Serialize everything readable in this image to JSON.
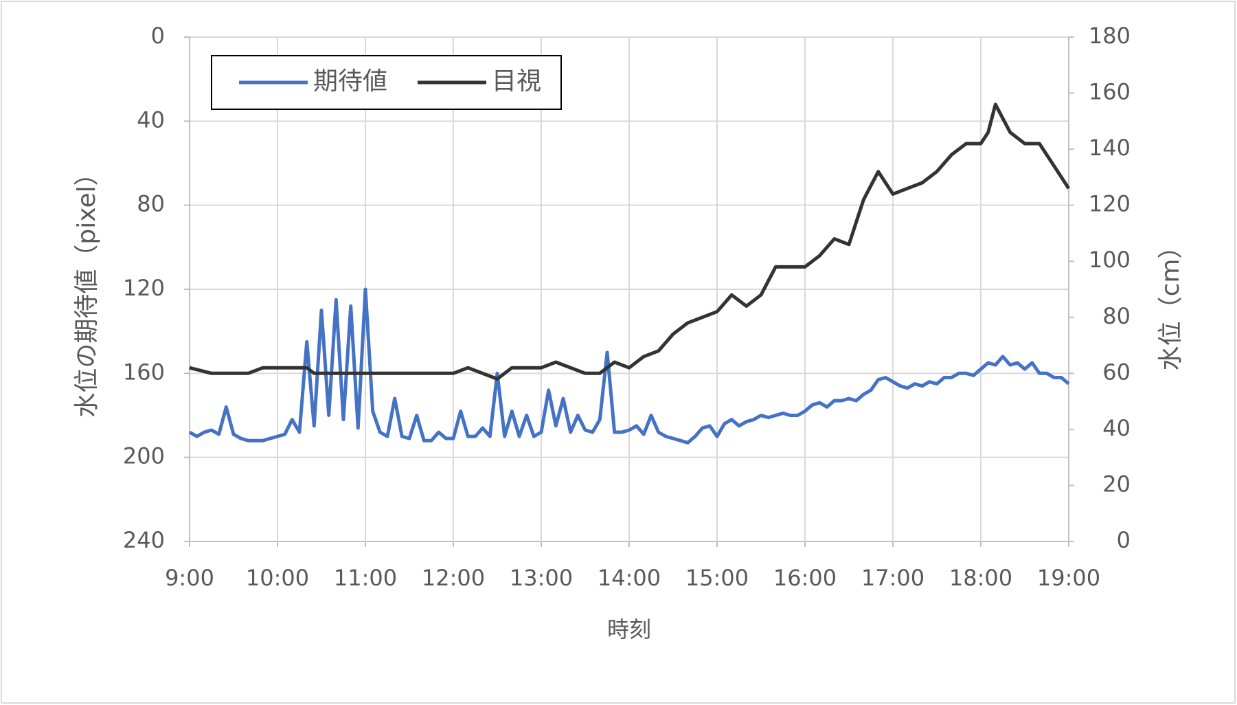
{
  "chart_data": {
    "type": "line",
    "x_label": "時刻",
    "y_label": "水位の期待値（pixel）",
    "y2_label": "水位（cm）",
    "xlim": [
      "9:00",
      "19:00"
    ],
    "xticks": [
      "9:00",
      "10:00",
      "11:00",
      "12:00",
      "13:00",
      "14:00",
      "15:00",
      "16:00",
      "17:00",
      "18:00",
      "19:00"
    ],
    "ylim": [
      0,
      240
    ],
    "y_inverted": true,
    "yticks": [
      0,
      40,
      80,
      120,
      160,
      200,
      240
    ],
    "y2lim": [
      0,
      180
    ],
    "y2ticks": [
      0,
      20,
      40,
      60,
      80,
      100,
      120,
      140,
      160,
      180
    ],
    "grid": true,
    "legend": "top-left",
    "series": [
      {
        "name": "期待値",
        "color": "#4472c4",
        "x": [
          "9:00",
          "9:05",
          "9:10",
          "9:15",
          "9:20",
          "9:25",
          "9:30",
          "9:35",
          "9:40",
          "9:45",
          "9:50",
          "9:55",
          "10:00",
          "10:05",
          "10:10",
          "10:15",
          "10:20",
          "10:25",
          "10:30",
          "10:35",
          "10:40",
          "10:45",
          "10:50",
          "10:55",
          "11:00",
          "11:05",
          "11:10",
          "11:15",
          "11:20",
          "11:25",
          "11:30",
          "11:35",
          "11:40",
          "11:45",
          "11:50",
          "11:55",
          "12:00",
          "12:05",
          "12:10",
          "12:15",
          "12:20",
          "12:25",
          "12:30",
          "12:35",
          "12:40",
          "12:45",
          "12:50",
          "12:55",
          "13:00",
          "13:05",
          "13:10",
          "13:15",
          "13:20",
          "13:25",
          "13:30",
          "13:35",
          "13:40",
          "13:45",
          "13:50",
          "13:55",
          "14:00",
          "14:05",
          "14:10",
          "14:15",
          "14:20",
          "14:25",
          "14:30",
          "14:35",
          "14:40",
          "14:45",
          "14:50",
          "14:55",
          "15:00",
          "15:05",
          "15:10",
          "15:15",
          "15:20",
          "15:25",
          "15:30",
          "15:35",
          "15:40",
          "15:45",
          "15:50",
          "15:55",
          "16:00",
          "16:05",
          "16:10",
          "16:15",
          "16:20",
          "16:25",
          "16:30",
          "16:35",
          "16:40",
          "16:45",
          "16:50",
          "16:55",
          "17:00",
          "17:05",
          "17:10",
          "17:15",
          "17:20",
          "17:25",
          "17:30",
          "17:35",
          "17:40",
          "17:45",
          "17:50",
          "17:55",
          "18:00",
          "18:05",
          "18:10",
          "18:15",
          "18:20",
          "18:25",
          "18:30",
          "18:35",
          "18:40",
          "18:45",
          "18:50",
          "18:55",
          "19:00"
        ],
        "values": [
          188,
          190,
          188,
          187,
          189,
          176,
          189,
          191,
          192,
          192,
          192,
          191,
          190,
          189,
          182,
          188,
          145,
          185,
          130,
          180,
          125,
          182,
          128,
          186,
          120,
          178,
          188,
          190,
          172,
          190,
          191,
          180,
          192,
          192,
          188,
          191,
          191,
          178,
          190,
          190,
          186,
          190,
          160,
          190,
          178,
          190,
          180,
          190,
          188,
          168,
          185,
          172,
          188,
          180,
          187,
          188,
          182,
          150,
          188,
          188,
          187,
          185,
          189,
          180,
          188,
          190,
          191,
          192,
          193,
          190,
          186,
          185,
          190,
          184,
          182,
          185,
          183,
          182,
          180,
          181,
          180,
          179,
          180,
          180,
          178,
          175,
          174,
          176,
          173,
          173,
          172,
          173,
          170,
          168,
          163,
          162,
          164,
          166,
          167,
          165,
          166,
          164,
          165,
          162,
          162,
          160,
          160,
          161,
          158,
          155,
          156,
          152,
          156,
          155,
          158,
          155,
          160,
          160,
          162,
          162,
          165
        ]
      },
      {
        "name": "目視",
        "color": "#333333",
        "axis": "y2",
        "x": [
          "9:00",
          "9:15",
          "9:40",
          "9:50",
          "10:20",
          "10:25",
          "12:00",
          "12:10",
          "12:30",
          "12:40",
          "13:00",
          "13:10",
          "13:30",
          "13:40",
          "13:50",
          "14:00",
          "14:10",
          "14:20",
          "14:30",
          "14:40",
          "15:00",
          "15:10",
          "15:20",
          "15:30",
          "15:40",
          "16:00",
          "16:10",
          "16:20",
          "16:30",
          "16:40",
          "16:50",
          "17:00",
          "17:10",
          "17:20",
          "17:30",
          "17:40",
          "17:50",
          "18:00",
          "18:05",
          "18:10",
          "18:20",
          "18:30",
          "18:40",
          "18:50",
          "19:00"
        ],
        "values": [
          62,
          60,
          60,
          62,
          62,
          60,
          60,
          62,
          58,
          62,
          62,
          64,
          60,
          60,
          64,
          62,
          66,
          68,
          74,
          78,
          82,
          88,
          84,
          88,
          98,
          98,
          102,
          108,
          106,
          122,
          132,
          124,
          126,
          128,
          132,
          138,
          142,
          142,
          146,
          156,
          146,
          142,
          142,
          134,
          126
        ]
      }
    ]
  }
}
